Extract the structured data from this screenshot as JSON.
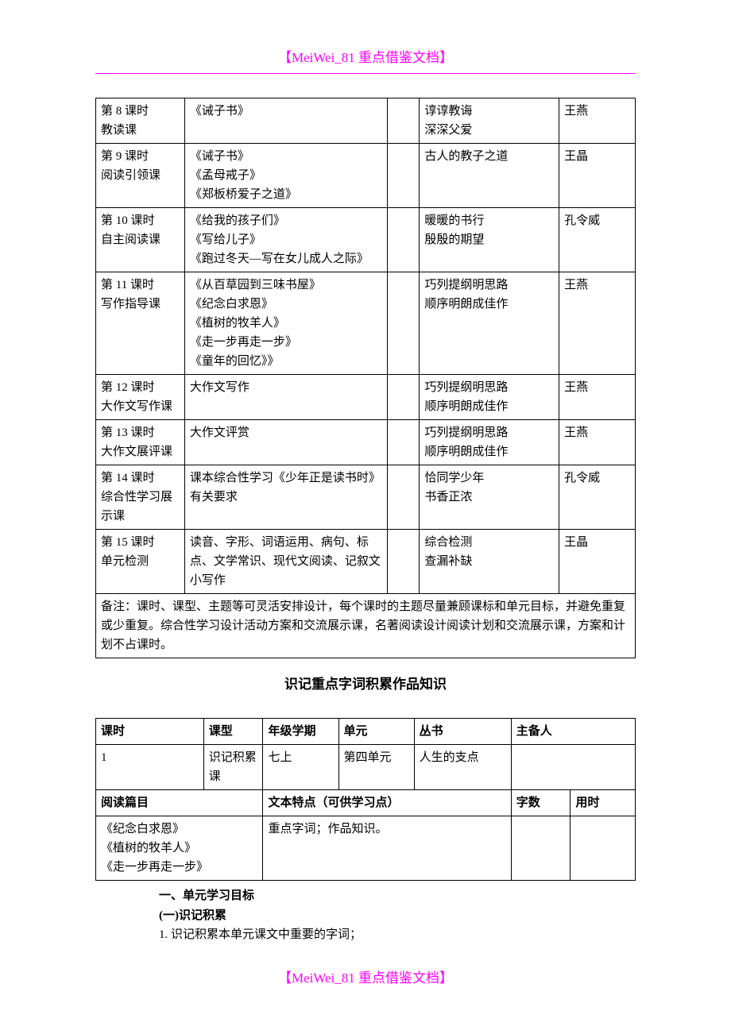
{
  "header": "【MeiWei_81 重点借鉴文档】",
  "footer": "【MeiWei_81 重点借鉴文档】",
  "table1": {
    "columns": {
      "widths": [
        "14%",
        "32%",
        "5%",
        "22%",
        "12%"
      ]
    },
    "rows": [
      {
        "c1": "第 8 课时\n教读课",
        "c2": "《诫子书》",
        "c3": "",
        "c4": "谆谆教诲\n深深父爱",
        "c5": "王燕"
      },
      {
        "c1": "第 9 课时\n阅读引领课",
        "c2": "《诫子书》\n《孟母戒子》\n《郑板桥爱子之道》",
        "c3": "",
        "c4": "古人的教子之道",
        "c5": "王晶"
      },
      {
        "c1": "第 10 课时\n自主阅读课",
        "c2": "《给我的孩子们》\n《写给儿子》\n《跑过冬天—写在女儿成人之际》",
        "c3": "",
        "c4": "暖暖的书行\n殷殷的期望",
        "c5": "孔令威"
      },
      {
        "c1": "第 11 课时\n写作指导课",
        "c2": "《从百草园到三味书屋》\n《纪念白求恩》\n《植树的牧羊人》\n《走一步再走一步》\n《童年的回忆》》",
        "c3": "",
        "c4": "巧列提纲明思路\n顺序明朗成佳作",
        "c5": "王燕"
      },
      {
        "c1": "第 12 课时\n大作文写作课",
        "c2": "大作文写作",
        "c3": "",
        "c4": "巧列提纲明思路\n顺序明朗成佳作",
        "c5": "王燕"
      },
      {
        "c1": "第 13 课时\n大作文展评课",
        "c2": "大作文评赏",
        "c3": "",
        "c4": "巧列提纲明思路\n顺序明朗成佳作",
        "c5": "王燕"
      },
      {
        "c1": "第 14 课时\n综合性学习展示课",
        "c2": "课本综合性学习《少年正是读书时》有关要求",
        "c3": "",
        "c4": "恰同学少年\n书香正浓",
        "c5": "孔令威"
      },
      {
        "c1": "第 15 课时\n单元检测",
        "c2": "读音、字形、词语运用、病句、标点、文学常识、现代文阅读、记叙文小写作",
        "c3": "",
        "c4": "综合检测\n查漏补缺",
        "c5": "王晶"
      }
    ],
    "note": "备注：课时、课型、主题等可灵活安排设计，每个课时的主题尽量兼顾课标和单元目标，并避免重复或少重复。综合性学习设计活动方案和交流展示课，名著阅读设计阅读计划和交流展示课，方案和计划不占课时。"
  },
  "section_title": "识记重点字词积累作品知识",
  "table2": {
    "head": {
      "c1": "课时",
      "c2": "课型",
      "c3": "年级学期",
      "c4": "单元",
      "c5": "丛书",
      "c6": "主备人",
      "c7": ""
    },
    "row1": {
      "c1": "1",
      "c2": "识记积累课",
      "c3": "七上",
      "c4": "第四单元",
      "c5": "人生的支点",
      "c6": "",
      "c7": ""
    },
    "row2": {
      "c1": "阅读篇目",
      "c2": "文本特点（可供学习点）",
      "c3": "字数",
      "c4": "用时"
    },
    "row3": {
      "c1": "《纪念白求恩》\n《植树的牧羊人》\n《走一步再走一步》",
      "c2": "重点字词；作品知识。",
      "c3": "",
      "c4": ""
    }
  },
  "body": {
    "h1": "一、单元学习目标",
    "h2": "(一)识记积累",
    "p1": "1. 识记积累本单元课文中重要的字词；"
  },
  "colors": {
    "text": "#000000",
    "accent": "#ff00ff",
    "border": "#000000",
    "bg": "#ffffff"
  },
  "fonts": {
    "body_size": 15,
    "title_size": 17
  }
}
